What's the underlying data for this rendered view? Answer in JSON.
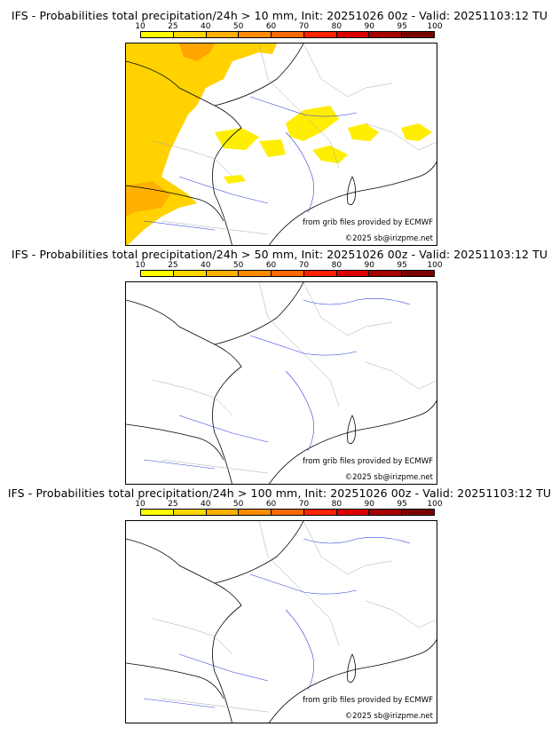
{
  "colorbar": {
    "ticks": [
      "10",
      "25",
      "40",
      "50",
      "60",
      "70",
      "80",
      "90",
      "95",
      "100"
    ],
    "colors": [
      "#ffff00",
      "#ffd700",
      "#ffb000",
      "#ff8c00",
      "#ff6a00",
      "#ff2200",
      "#dd0000",
      "#a50000",
      "#7a0000"
    ]
  },
  "credits": {
    "source": "from grib files provided by ECMWF",
    "copyright": "©2025 sb@irizpme.net"
  },
  "panels": [
    {
      "title": "IFS - Probabilities total precipitation/24h > 10 mm, Init: 20251026 00z - Valid: 20251103:12 TU"
    },
    {
      "title": "IFS - Probabilities total precipitation/24h > 50 mm, Init: 20251026 00z - Valid: 20251103:12 TU"
    },
    {
      "title": "IFS - Probabilities total precipitation/24h > 100 mm, Init: 20251026 00z - Valid: 20251103:12 TU"
    }
  ]
}
